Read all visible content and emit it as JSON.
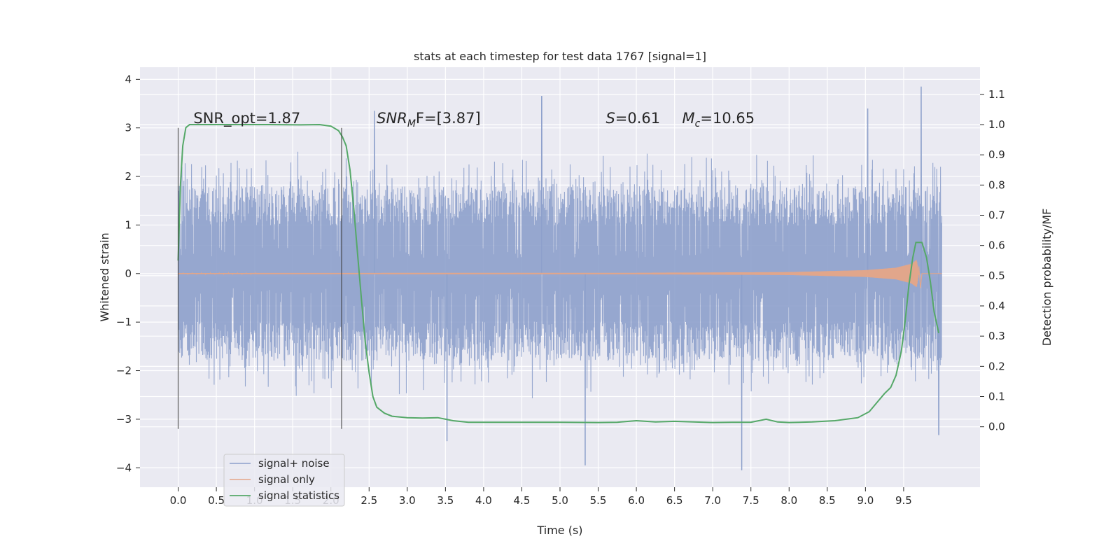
{
  "chart_data": {
    "type": "line",
    "title": "stats at each timestep for test data 1767 [signal=1]",
    "xlabel": "Time (s)",
    "ylabel": "Whitened strain",
    "y2label": "Detection probability/MF",
    "xlim": [
      -0.5,
      10.5
    ],
    "ylim": [
      -4.4,
      4.25
    ],
    "y2lim": [
      -0.2,
      1.19
    ],
    "x_ticks": [
      0.0,
      0.5,
      1.0,
      1.5,
      2.0,
      2.5,
      3.0,
      3.5,
      4.0,
      4.5,
      5.0,
      5.5,
      6.0,
      6.5,
      7.0,
      7.5,
      8.0,
      8.5,
      9.0,
      9.5
    ],
    "x_tick_labels": [
      "0.0",
      "0.5",
      "1.0",
      "1.5",
      "2.0",
      "2.5",
      "3.0",
      "3.5",
      "4.0",
      "4.5",
      "5.0",
      "5.5",
      "6.0",
      "6.5",
      "7.0",
      "7.5",
      "8.0",
      "8.5",
      "9.0",
      "9.5"
    ],
    "y_ticks": [
      4,
      3,
      2,
      1,
      0,
      -1,
      -2,
      -3,
      -4
    ],
    "y_tick_labels": [
      "4",
      "3",
      "2",
      "1",
      "0",
      "−1",
      "−2",
      "−3",
      "−4"
    ],
    "y2_ticks": [
      1.1,
      1.0,
      0.9,
      0.8,
      0.7,
      0.6,
      0.5,
      0.4,
      0.3,
      0.2,
      0.1,
      0.0
    ],
    "y2_tick_labels": [
      "1.1",
      "1.0",
      "0.9",
      "0.8",
      "0.7",
      "0.6",
      "0.5",
      "0.4",
      "0.3",
      "0.2",
      "0.1",
      "0.0"
    ],
    "grid": true,
    "legend_position": "lower-left",
    "colors": {
      "noise": "#8da0cb",
      "signal": "#e5a587",
      "stats": "#55a868",
      "vline": "#3d3d3d",
      "background": "#eaeaf2",
      "grid": "#ffffff"
    },
    "series": [
      {
        "name": "signal+ noise",
        "description": "dense whitened strain trace, about 0 ± 1.8 with spikes",
        "x_range": [
          0.0,
          10.0
        ],
        "typical_envelope": [
          -1.8,
          1.8
        ],
        "peaks": [
          {
            "x": 4.76,
            "y": 3.65
          },
          {
            "x": 9.73,
            "y": 3.85
          },
          {
            "x": 9.03,
            "y": 3.4
          },
          {
            "x": 2.57,
            "y": 3.35
          },
          {
            "x": 7.38,
            "y": -4.05
          },
          {
            "x": 5.33,
            "y": -3.95
          },
          {
            "x": 3.52,
            "y": -3.45
          },
          {
            "x": 9.96,
            "y": -3.32
          }
        ]
      },
      {
        "name": "signal only",
        "description": "chirp signal, near zero, growing toward merger",
        "x_range": [
          0.0,
          9.7
        ],
        "amplitude_profile": [
          {
            "x": 0.0,
            "amp": 0.01
          },
          {
            "x": 6.0,
            "amp": 0.015
          },
          {
            "x": 8.0,
            "amp": 0.03
          },
          {
            "x": 9.0,
            "amp": 0.07
          },
          {
            "x": 9.4,
            "amp": 0.12
          },
          {
            "x": 9.6,
            "amp": 0.2
          },
          {
            "x": 9.67,
            "amp": 0.28
          },
          {
            "x": 9.7,
            "amp": 0.0
          }
        ]
      },
      {
        "name": "signal statistics",
        "axis": "right",
        "x": [
          0.0,
          0.03,
          0.06,
          0.1,
          0.15,
          0.25,
          0.4,
          0.8,
          1.2,
          1.6,
          1.85,
          2.0,
          2.1,
          2.15,
          2.2,
          2.25,
          2.3,
          2.35,
          2.4,
          2.45,
          2.5,
          2.55,
          2.6,
          2.7,
          2.8,
          3.0,
          3.2,
          3.4,
          3.6,
          3.8,
          4.0,
          4.5,
          5.0,
          5.5,
          5.75,
          6.0,
          6.25,
          6.5,
          6.75,
          7.0,
          7.25,
          7.5,
          7.7,
          7.85,
          8.0,
          8.3,
          8.6,
          8.9,
          9.05,
          9.15,
          9.25,
          9.33,
          9.4,
          9.47,
          9.52,
          9.57,
          9.62,
          9.66,
          9.7,
          9.74,
          9.8,
          9.85,
          9.9,
          9.96
        ],
        "y": [
          0.55,
          0.8,
          0.93,
          0.99,
          1.0,
          1.0,
          1.0,
          1.0,
          1.0,
          0.999,
          1.0,
          0.995,
          0.98,
          0.96,
          0.93,
          0.85,
          0.72,
          0.57,
          0.42,
          0.28,
          0.18,
          0.1,
          0.065,
          0.045,
          0.035,
          0.03,
          0.029,
          0.03,
          0.02,
          0.015,
          0.015,
          0.015,
          0.015,
          0.014,
          0.015,
          0.02,
          0.016,
          0.018,
          0.016,
          0.014,
          0.015,
          0.015,
          0.025,
          0.016,
          0.014,
          0.016,
          0.02,
          0.03,
          0.05,
          0.08,
          0.11,
          0.13,
          0.17,
          0.25,
          0.35,
          0.47,
          0.56,
          0.61,
          0.61,
          0.61,
          0.56,
          0.48,
          0.38,
          0.31
        ]
      }
    ],
    "vertical_lines": [
      {
        "x": 0.0,
        "y_range": [
          -3.2,
          3.0
        ]
      },
      {
        "x": 2.14,
        "y_range": [
          -3.2,
          3.0
        ]
      }
    ],
    "annotations": [
      {
        "id": "snr_opt",
        "text": "SNR_opt=1.87",
        "x": 0.2,
        "y": 3.1
      },
      {
        "id": "snr_mf",
        "text_prefix": "SNR",
        "text_sub": "M",
        "text_suffix": "F=[3.87]",
        "x": 2.6,
        "y": 3.1
      },
      {
        "id": "s_value",
        "text_prefix": "S",
        "text_suffix": "=0.61",
        "x": 5.6,
        "y": 3.1
      },
      {
        "id": "mc_value",
        "text_prefix": "M",
        "text_sub": "c",
        "text_suffix": "=10.65",
        "x": 6.6,
        "y": 3.1
      }
    ]
  }
}
